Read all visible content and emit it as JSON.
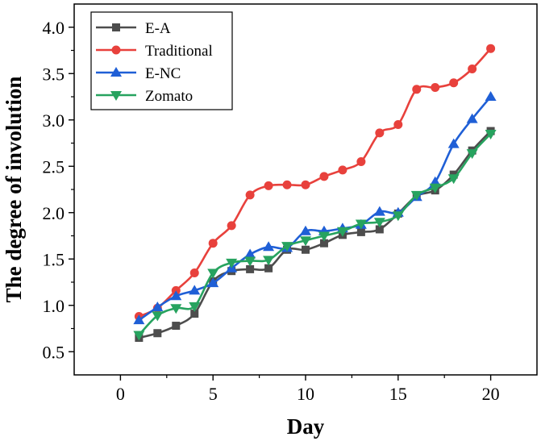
{
  "chart_data": {
    "type": "line",
    "title": "",
    "xlabel": "Day",
    "ylabel": "The degree of involution",
    "xlim": [
      -2.5,
      22.5
    ],
    "ylim": [
      0.25,
      4.25
    ],
    "xticks": [
      0,
      5,
      10,
      15,
      20
    ],
    "yticks": [
      0.5,
      1.0,
      1.5,
      2.0,
      2.5,
      3.0,
      3.5,
      4.0
    ],
    "x_tick_labels": [
      "0",
      "5",
      "10",
      "15",
      "20"
    ],
    "y_tick_labels": [
      "0.5",
      "1.0",
      "1.5",
      "2.0",
      "2.5",
      "3.0",
      "3.5",
      "4.0"
    ],
    "legend_position": "top-left",
    "grid": false,
    "x": [
      1,
      2,
      3,
      4,
      5,
      6,
      7,
      8,
      9,
      10,
      11,
      12,
      13,
      14,
      15,
      16,
      17,
      18,
      19,
      20
    ],
    "series": [
      {
        "name": "E-A",
        "color": "#4d4d4d",
        "marker": "square",
        "values": [
          0.65,
          0.7,
          0.78,
          0.91,
          1.26,
          1.37,
          1.39,
          1.4,
          1.6,
          1.6,
          1.67,
          1.76,
          1.79,
          1.82,
          1.99,
          2.18,
          2.24,
          2.41,
          2.67,
          2.88
        ]
      },
      {
        "name": "Traditional",
        "color": "#e8413c",
        "marker": "circle",
        "values": [
          0.88,
          0.97,
          1.16,
          1.35,
          1.67,
          1.86,
          2.19,
          2.29,
          2.3,
          2.3,
          2.39,
          2.46,
          2.55,
          2.86,
          2.95,
          3.33,
          3.35,
          3.4,
          3.55,
          3.77
        ]
      },
      {
        "name": "E-NC",
        "color": "#1f5fd6",
        "marker": "triangle-up",
        "values": [
          0.84,
          0.98,
          1.1,
          1.16,
          1.24,
          1.4,
          1.55,
          1.63,
          1.62,
          1.8,
          1.8,
          1.83,
          1.87,
          2.01,
          2.0,
          2.17,
          2.33,
          2.74,
          3.01,
          3.25
        ]
      },
      {
        "name": "Zomato",
        "color": "#27a35f",
        "marker": "triangle-down",
        "values": [
          0.68,
          0.89,
          0.97,
          0.99,
          1.35,
          1.46,
          1.48,
          1.49,
          1.64,
          1.7,
          1.75,
          1.8,
          1.88,
          1.9,
          1.97,
          2.19,
          2.27,
          2.37,
          2.64,
          2.85
        ]
      }
    ]
  }
}
